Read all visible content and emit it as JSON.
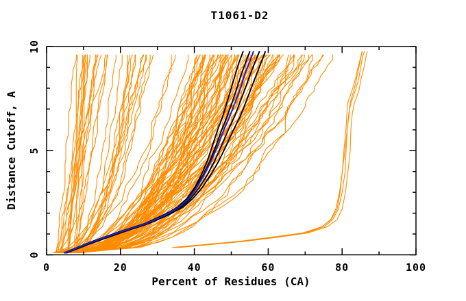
{
  "chart_data": {
    "type": "line",
    "title": "T1061-D2",
    "xlabel": "Percent of Residues (CA)",
    "ylabel": "Distance Cutoff, A",
    "xlim": [
      0,
      100
    ],
    "ylim": [
      0,
      10
    ],
    "x_ticks": [
      0,
      20,
      40,
      60,
      80,
      100
    ],
    "x_minor_step": 10,
    "y_ticks": [
      0,
      5,
      10
    ],
    "y_minor_step": 1,
    "grid": false,
    "legend": "none",
    "colors": {
      "predictions": "#ff8c00",
      "highlight_black": "#000000",
      "highlight_blue": "#2020cc",
      "axis": "#000000",
      "background": "#ffffff"
    },
    "highlight_cutoffs": [
      0.1,
      0.6,
      1.1,
      1.5,
      1.9,
      2.3,
      2.7,
      3.2,
      3.8,
      4.5,
      5.3,
      6.0,
      6.6,
      7.3,
      8.0,
      8.6,
      9.2,
      9.75
    ],
    "blue_model": {
      "name": "highlighted-model-blue",
      "percents": [
        5,
        12,
        20,
        27,
        32,
        36,
        38.5,
        40.5,
        42.5,
        44.5,
        46.5,
        48,
        49.5,
        51,
        52.5,
        53.5,
        54.8,
        56
      ]
    },
    "black_models": [
      {
        "name": "highlighted-model-black-1",
        "percents": [
          5.3,
          12.5,
          20.5,
          27.3,
          32,
          35.5,
          38,
          40,
          41.8,
          43.5,
          45,
          46.3,
          47.6,
          48.8,
          50,
          51,
          52,
          53.2
        ]
      },
      {
        "name": "highlighted-model-black-2",
        "percents": [
          4.8,
          11.7,
          19.6,
          26.6,
          31.5,
          35.7,
          38.2,
          40.2,
          42.3,
          44.2,
          46,
          47.4,
          48.8,
          50.2,
          51.5,
          52.6,
          53.8,
          55
        ]
      },
      {
        "name": "highlighted-model-black-3",
        "percents": [
          5.1,
          12.2,
          20.2,
          27,
          32.3,
          36.4,
          39,
          41.2,
          43.4,
          45.5,
          47.5,
          49.2,
          50.8,
          52.3,
          53.8,
          55,
          56.3,
          57.6
        ]
      },
      {
        "name": "highlighted-model-black-4",
        "percents": [
          5.5,
          12.8,
          20.8,
          27.6,
          32.8,
          37,
          39.6,
          42,
          44.3,
          46.6,
          48.8,
          50.6,
          52.3,
          53.9,
          55.4,
          56.7,
          58,
          59.2
        ]
      }
    ],
    "right_outlier_group": {
      "name": "high-coverage-outlier-bundle",
      "cutoffs": [
        0.35,
        0.5,
        0.65,
        0.85,
        1.05,
        1.35,
        1.7,
        2.2,
        3.0,
        4.0,
        5.0,
        6.0,
        6.8,
        7.3,
        7.9,
        8.4,
        9.0,
        9.5,
        9.75
      ],
      "percents": [
        35,
        44,
        53,
        62,
        70,
        75,
        77.5,
        79,
        80,
        80.6,
        81,
        81.4,
        81.8,
        82.3,
        83.5,
        84.3,
        85,
        85.6,
        86
      ],
      "offsets": [
        -0.7,
        -0.2,
        0.3,
        0.9
      ]
    },
    "orange_fan": {
      "name": "prediction-curves",
      "count": 110,
      "seed": 11,
      "start_percent_range": [
        2,
        9
      ],
      "cutoff_range": [
        0.1,
        9.75
      ],
      "top_percent_groups": [
        {
          "count": 12,
          "range": [
            8,
            14
          ]
        },
        {
          "count": 10,
          "range": [
            14,
            24
          ]
        },
        {
          "count": 10,
          "range": [
            24,
            38
          ]
        },
        {
          "count": 58,
          "range": [
            40,
            62
          ]
        },
        {
          "count": 14,
          "range": [
            62,
            70
          ]
        },
        {
          "count": 6,
          "range": [
            70,
            77
          ]
        }
      ]
    }
  }
}
